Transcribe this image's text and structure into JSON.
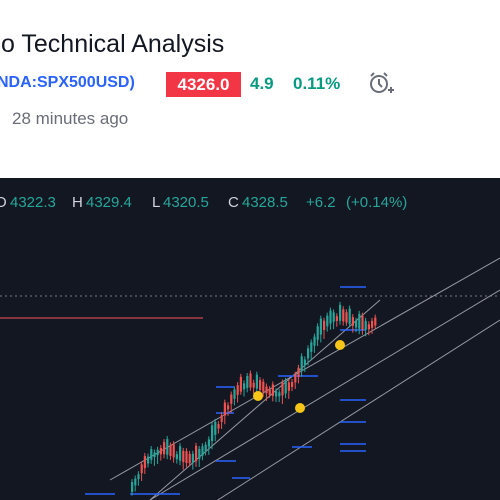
{
  "header": {
    "title": "o Technical Analysis",
    "symbol": "NDA:SPX500USD)",
    "price": "4326.0",
    "change": "4.9",
    "change_percent": "0.11%",
    "published": "28 minutes ago"
  },
  "legend": {
    "open_label": "O",
    "open": "4322.3",
    "high_label": "H",
    "high": "4329.4",
    "low_label": "L",
    "low": "4320.5",
    "close_label": "C",
    "close": "4328.5",
    "change": "+6.2",
    "change_percent": "(+0.14%)"
  }
}
